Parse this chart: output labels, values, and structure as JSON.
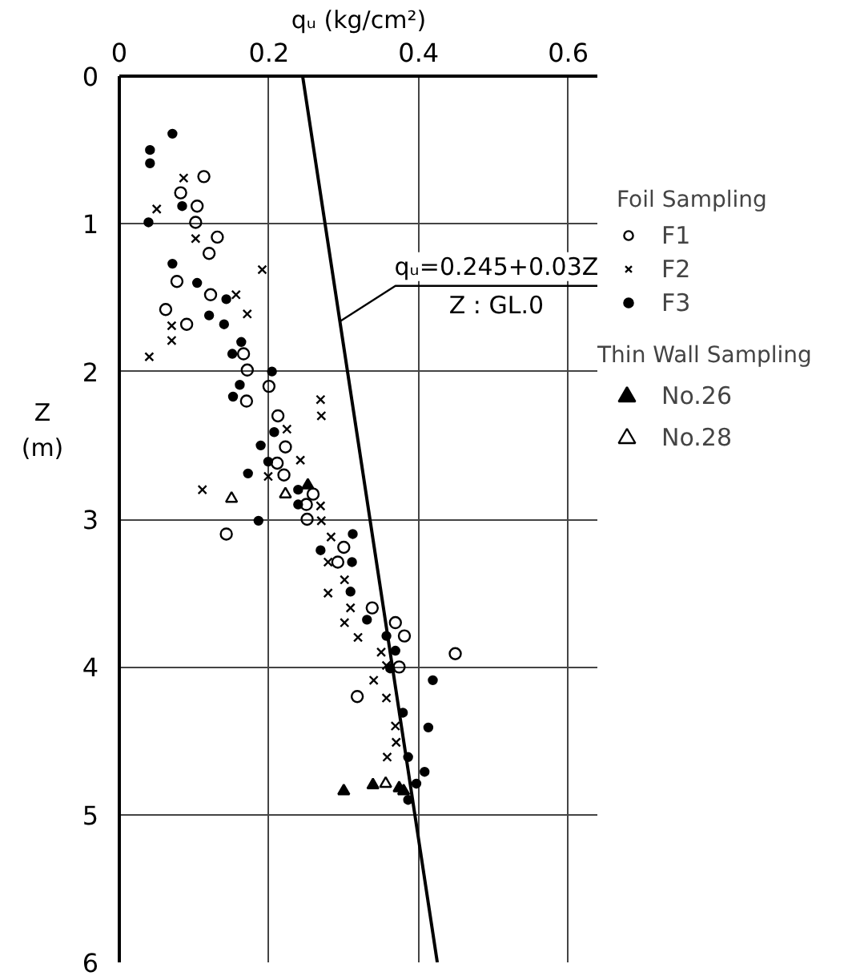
{
  "chart_data": {
    "type": "scatter",
    "xlabel": "qᵤ (kg/cm²)",
    "ylabel": "Z (m)",
    "legend_title": "Foil Sampling",
    "xlim": [
      0,
      0.64
    ],
    "xticks": [
      0,
      0.2,
      0.4,
      0.6
    ],
    "ylim": [
      6,
      0
    ],
    "yticks": [
      0,
      1,
      2,
      3,
      4,
      5,
      6
    ],
    "grid": true,
    "legend": "right",
    "annotations": [
      {
        "text": "qᵤ=0.245+0.03Z",
        "x": 0.295,
        "y": 1.66
      },
      "Z : GL.0",
      "Thin Wall Sampling"
    ],
    "series": [
      {
        "name": "F1",
        "color": "#000000",
        "marker": "circle_open",
        "x": [
          0.113,
          0.082,
          0.104,
          0.102,
          0.131,
          0.12,
          0.077,
          0.122,
          0.062,
          0.09,
          0.166,
          0.171,
          0.2,
          0.17,
          0.212,
          0.222,
          0.211,
          0.22,
          0.259,
          0.25,
          0.251,
          0.143,
          0.3,
          0.292,
          0.338,
          0.369,
          0.381,
          0.449,
          0.374,
          0.318
        ],
        "values": [
          0.68,
          0.79,
          0.88,
          0.99,
          1.09,
          1.2,
          1.39,
          1.48,
          1.58,
          1.68,
          1.88,
          1.99,
          2.1,
          2.2,
          2.3,
          2.51,
          2.62,
          2.7,
          2.83,
          2.9,
          3.0,
          3.1,
          3.19,
          3.29,
          3.6,
          3.7,
          3.79,
          3.91,
          4.0,
          4.2
        ]
      },
      {
        "name": "F2",
        "color": "#000000",
        "marker": "cross",
        "x": [
          0.086,
          0.05,
          0.102,
          0.191,
          0.156,
          0.171,
          0.07,
          0.07,
          0.04,
          0.269,
          0.27,
          0.224,
          0.242,
          0.199,
          0.111,
          0.269,
          0.27,
          0.283,
          0.279,
          0.301,
          0.279,
          0.309,
          0.301,
          0.319,
          0.35,
          0.357,
          0.34,
          0.357,
          0.369,
          0.37,
          0.358
        ],
        "values": [
          0.69,
          0.9,
          1.1,
          1.31,
          1.48,
          1.61,
          1.69,
          1.79,
          1.9,
          2.19,
          2.3,
          2.39,
          2.6,
          2.71,
          2.8,
          2.91,
          3.01,
          3.12,
          3.29,
          3.41,
          3.5,
          3.6,
          3.7,
          3.8,
          3.9,
          3.99,
          4.09,
          4.21,
          4.4,
          4.51,
          4.61
        ]
      },
      {
        "name": "F3",
        "color": "#000000",
        "marker": "circle",
        "x": [
          0.071,
          0.041,
          0.041,
          0.084,
          0.039,
          0.071,
          0.104,
          0.143,
          0.12,
          0.14,
          0.163,
          0.151,
          0.204,
          0.161,
          0.152,
          0.207,
          0.189,
          0.199,
          0.172,
          0.239,
          0.239,
          0.186,
          0.312,
          0.269,
          0.311,
          0.309,
          0.331,
          0.357,
          0.369,
          0.362,
          0.419,
          0.379,
          0.413,
          0.386,
          0.408,
          0.397,
          0.386
        ],
        "values": [
          0.39,
          0.5,
          0.59,
          0.88,
          0.99,
          1.27,
          1.4,
          1.51,
          1.62,
          1.68,
          1.8,
          1.88,
          2.0,
          2.09,
          2.17,
          2.41,
          2.5,
          2.61,
          2.69,
          2.8,
          2.9,
          3.01,
          3.1,
          3.21,
          3.29,
          3.49,
          3.68,
          3.79,
          3.89,
          4.01,
          4.09,
          4.31,
          4.41,
          4.61,
          4.71,
          4.79,
          4.9
        ]
      },
      {
        "name": "No.26",
        "color": "#000000",
        "marker": "triangle",
        "x": [
          0.252,
          0.3,
          0.339,
          0.374,
          0.38
        ],
        "values": [
          2.77,
          4.84,
          4.8,
          4.82,
          4.84
        ]
      },
      {
        "name": "No.28",
        "color": "#000000",
        "marker": "triangle_open",
        "x": [
          0.15,
          0.222,
          0.356
        ],
        "values": [
          2.86,
          2.83,
          4.79
        ]
      },
      {
        "type": "line",
        "color": "#000000",
        "line_style": "solid",
        "x": [
          0.245,
          0.425
        ],
        "values": [
          0,
          6
        ]
      }
    ]
  }
}
